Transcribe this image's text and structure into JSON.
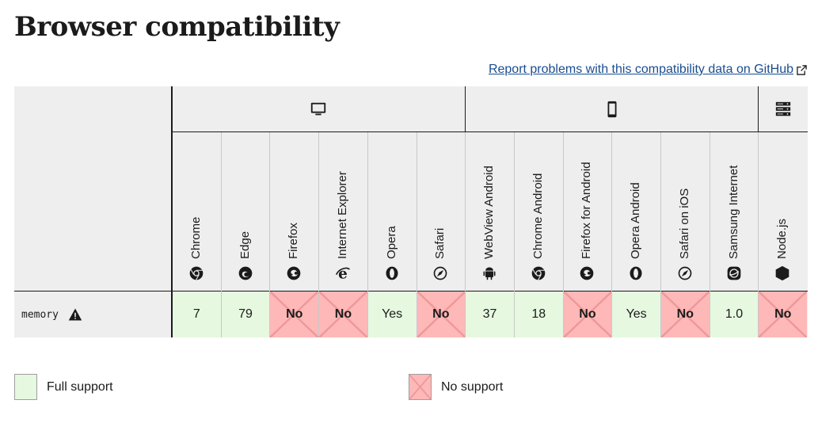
{
  "title": "Browser compatibility",
  "report_link": "Report problems with this compatibility data on GitHub",
  "platforms": [
    {
      "name": "desktop-icon"
    },
    {
      "name": "mobile-icon"
    },
    {
      "name": "server-icon"
    }
  ],
  "browsers": [
    {
      "label": "Chrome",
      "icon": "chrome-icon"
    },
    {
      "label": "Edge",
      "icon": "edge-icon"
    },
    {
      "label": "Firefox",
      "icon": "firefox-icon"
    },
    {
      "label": "Internet Explorer",
      "icon": "internet-explorer-icon"
    },
    {
      "label": "Opera",
      "icon": "opera-icon"
    },
    {
      "label": "Safari",
      "icon": "safari-icon"
    },
    {
      "label": "WebView Android",
      "icon": "android-icon"
    },
    {
      "label": "Chrome Android",
      "icon": "chrome-icon"
    },
    {
      "label": "Firefox for Android",
      "icon": "firefox-icon"
    },
    {
      "label": "Opera Android",
      "icon": "opera-icon"
    },
    {
      "label": "Safari on iOS",
      "icon": "safari-icon"
    },
    {
      "label": "Samsung Internet",
      "icon": "samsung-internet-icon"
    },
    {
      "label": "Node.js",
      "icon": "nodejs-icon"
    }
  ],
  "feature": {
    "name": "memory",
    "warning_icon": "warning-icon"
  },
  "support": [
    {
      "value": "7",
      "status": "yes"
    },
    {
      "value": "79",
      "status": "yes"
    },
    {
      "value": "No",
      "status": "no"
    },
    {
      "value": "No",
      "status": "no"
    },
    {
      "value": "Yes",
      "status": "yes"
    },
    {
      "value": "No",
      "status": "no"
    },
    {
      "value": "37",
      "status": "yes"
    },
    {
      "value": "18",
      "status": "yes"
    },
    {
      "value": "No",
      "status": "no"
    },
    {
      "value": "Yes",
      "status": "yes"
    },
    {
      "value": "No",
      "status": "no"
    },
    {
      "value": "1.0",
      "status": "yes"
    },
    {
      "value": "No",
      "status": "no"
    }
  ],
  "legend": {
    "full_support": "Full support",
    "no_support": "No support"
  },
  "colors": {
    "full_support": "#e6f8e0",
    "no_support": "#ffb8b8",
    "link": "#1a4d8f",
    "header_bg": "#eeeeee"
  }
}
